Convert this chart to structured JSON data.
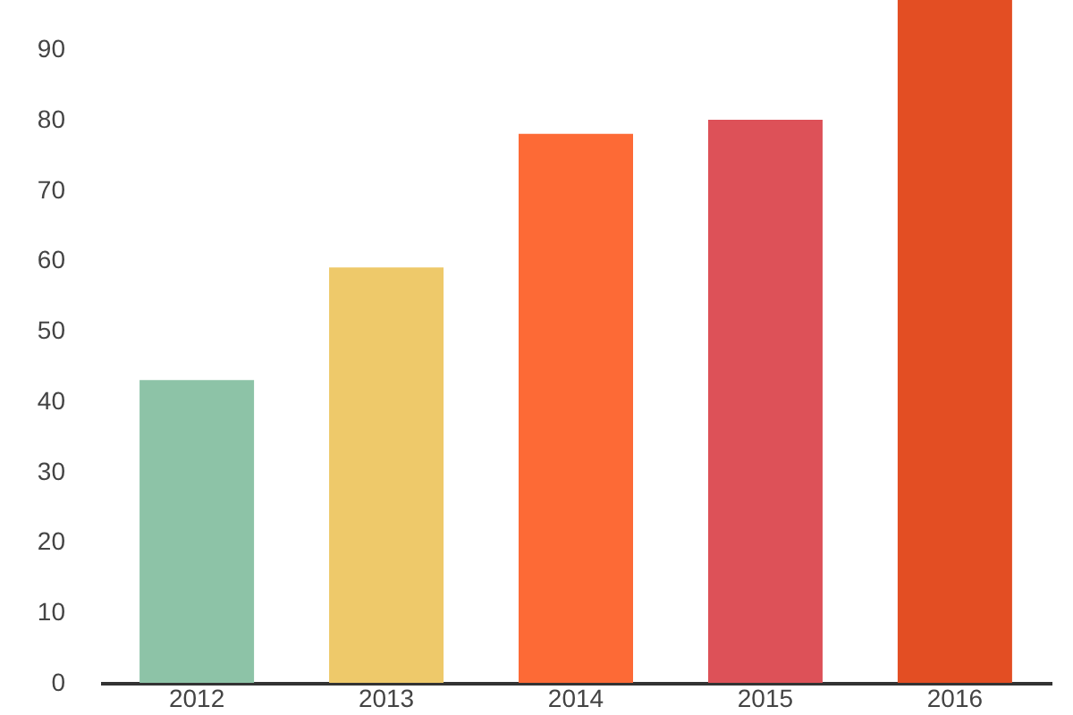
{
  "chart_data": {
    "type": "bar",
    "categories": [
      "2012",
      "2013",
      "2014",
      "2015",
      "2016"
    ],
    "values": [
      43,
      59,
      78,
      80,
      97
    ],
    "colors": [
      "#8dc3a7",
      "#eec96a",
      "#fd6a36",
      "#dd5158",
      "#e34e23"
    ],
    "ylim": [
      0,
      97
    ],
    "yticks": [
      0,
      10,
      20,
      30,
      40,
      50,
      60,
      70,
      80,
      90
    ],
    "grid": false,
    "legend": false
  }
}
